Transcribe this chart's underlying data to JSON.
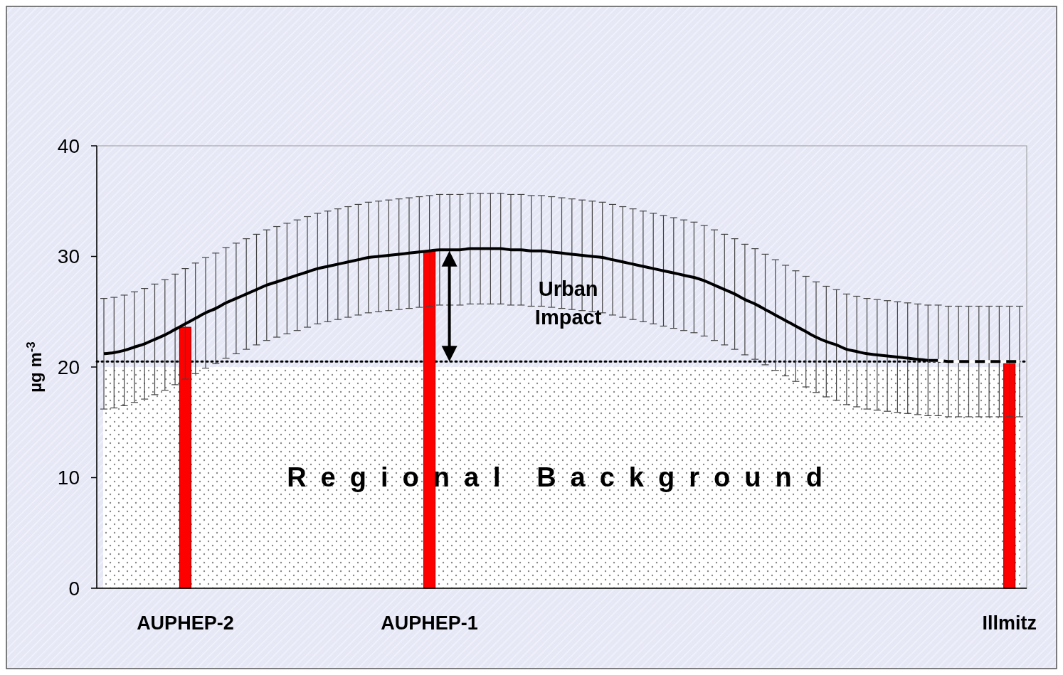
{
  "chart_data": {
    "type": "bar",
    "ylabel": "µg m$^{-3}$",
    "categories": [
      null,
      null,
      null,
      null,
      null,
      null,
      null,
      null,
      "AUPHEP-2",
      null,
      null,
      null,
      null,
      null,
      null,
      null,
      null,
      null,
      null,
      null,
      null,
      null,
      null,
      null,
      null,
      null,
      null,
      null,
      null,
      null,
      null,
      null,
      "AUPHEP-1",
      null,
      null,
      null,
      null,
      null,
      null,
      null,
      null,
      null,
      null,
      null,
      null,
      null,
      null,
      null,
      null,
      null,
      null,
      null,
      null,
      null,
      null,
      null,
      null,
      null,
      null,
      null,
      null,
      null,
      null,
      null,
      null,
      null,
      null,
      null,
      null,
      null,
      null,
      null,
      null,
      null,
      null,
      null,
      null,
      null,
      null,
      null,
      null,
      null,
      null,
      null,
      null,
      null,
      null,
      null,
      null,
      "Illmitz",
      null
    ],
    "series": [
      {
        "color": "#ff0000",
        "values": [
          null,
          null,
          null,
          null,
          null,
          null,
          null,
          null,
          23.6,
          null,
          null,
          null,
          null,
          null,
          null,
          null,
          null,
          null,
          null,
          null,
          null,
          null,
          null,
          null,
          null,
          null,
          null,
          null,
          null,
          null,
          null,
          null,
          30.5,
          null,
          null,
          null,
          null,
          null,
          null,
          null,
          null,
          null,
          null,
          null,
          null,
          null,
          null,
          null,
          null,
          null,
          null,
          null,
          null,
          null,
          null,
          null,
          null,
          null,
          null,
          null,
          null,
          null,
          null,
          null,
          null,
          null,
          null,
          null,
          null,
          null,
          null,
          null,
          null,
          null,
          null,
          null,
          null,
          null,
          null,
          null,
          null,
          null,
          null,
          null,
          null,
          null,
          null,
          null,
          null,
          20.3,
          null
        ]
      },
      {
        "type": "line",
        "color": "#000000",
        "line_style": "solid",
        "values": [
          21.2,
          21.3,
          21.5,
          21.8,
          22.1,
          22.5,
          22.9,
          23.4,
          23.9,
          24.4,
          24.9,
          25.3,
          25.8,
          26.2,
          26.6,
          27.0,
          27.4,
          27.7,
          28.0,
          28.3,
          28.6,
          28.9,
          29.1,
          29.3,
          29.5,
          29.7,
          29.9,
          30.0,
          30.1,
          30.2,
          30.3,
          30.4,
          30.5,
          30.6,
          30.6,
          30.6,
          30.7,
          30.7,
          30.7,
          30.7,
          30.6,
          30.6,
          30.5,
          30.5,
          30.4,
          30.3,
          30.2,
          30.1,
          30.0,
          29.9,
          29.7,
          29.5,
          29.3,
          29.1,
          28.9,
          28.7,
          28.5,
          28.3,
          28.1,
          27.8,
          27.4,
          27.0,
          26.6,
          26.1,
          25.7,
          25.2,
          24.7,
          24.2,
          23.7,
          23.2,
          22.7,
          22.3,
          22.0,
          21.6,
          21.4,
          21.2,
          21.1,
          21.0,
          20.9,
          20.8,
          20.7,
          20.6,
          null,
          null,
          null,
          null,
          null,
          null,
          null,
          null,
          null
        ],
        "errors": [
          5,
          5,
          5,
          5,
          5,
          5,
          5,
          5,
          5,
          5,
          5,
          5,
          5,
          5,
          5,
          5,
          5,
          5,
          5,
          5,
          5,
          5,
          5,
          5,
          5,
          5,
          5,
          5,
          5,
          5,
          5,
          5,
          5,
          5,
          5,
          5,
          5,
          5,
          5,
          5,
          5,
          5,
          5,
          5,
          5,
          5,
          5,
          5,
          5,
          5,
          5,
          5,
          5,
          5,
          5,
          5,
          5,
          5,
          5,
          5,
          5,
          5,
          5,
          5,
          5,
          5,
          5,
          5,
          5,
          5,
          5,
          5,
          5,
          5,
          5,
          5,
          5,
          5,
          5,
          5,
          5,
          5,
          null,
          null,
          null,
          null,
          null,
          null,
          null,
          null,
          null
        ]
      },
      {
        "type": "line",
        "color": "#000000",
        "line_style": "dashed",
        "values": [
          null,
          null,
          null,
          null,
          null,
          null,
          null,
          null,
          null,
          null,
          null,
          null,
          null,
          null,
          null,
          null,
          null,
          null,
          null,
          null,
          null,
          null,
          null,
          null,
          null,
          null,
          null,
          null,
          null,
          null,
          null,
          null,
          null,
          null,
          null,
          null,
          null,
          null,
          null,
          null,
          null,
          null,
          null,
          null,
          null,
          null,
          null,
          null,
          null,
          null,
          null,
          null,
          null,
          null,
          null,
          null,
          null,
          null,
          null,
          null,
          null,
          null,
          null,
          null,
          null,
          null,
          null,
          null,
          null,
          null,
          null,
          null,
          null,
          null,
          null,
          null,
          null,
          null,
          null,
          null,
          null,
          20.6,
          20.6,
          20.5,
          20.5,
          20.5,
          20.5,
          20.5,
          20.5,
          20.5,
          20.5
        ],
        "errors": [
          null,
          null,
          null,
          null,
          null,
          null,
          null,
          null,
          null,
          null,
          null,
          null,
          null,
          null,
          null,
          null,
          null,
          null,
          null,
          null,
          null,
          null,
          null,
          null,
          null,
          null,
          null,
          null,
          null,
          null,
          null,
          null,
          null,
          null,
          null,
          null,
          null,
          null,
          null,
          null,
          null,
          null,
          null,
          null,
          null,
          null,
          null,
          null,
          null,
          null,
          null,
          null,
          null,
          null,
          null,
          null,
          null,
          null,
          null,
          null,
          null,
          null,
          null,
          null,
          null,
          null,
          null,
          null,
          null,
          null,
          null,
          null,
          null,
          null,
          null,
          null,
          null,
          null,
          null,
          null,
          null,
          null,
          5,
          5,
          5,
          5,
          5,
          5,
          5,
          5,
          5
        ]
      }
    ],
    "ylim": [
      0,
      40
    ],
    "yticks": [
      0,
      10,
      20,
      30,
      40
    ],
    "ref_lines": [
      {
        "axis": "y",
        "value": 20.5,
        "color": "#000000",
        "line_style": "dotted"
      }
    ],
    "bands": [
      {
        "axis": "y",
        "from": 0,
        "to": 20,
        "label": "Regional Background",
        "color": "#ffffff"
      }
    ],
    "annotations": [
      "Urban Impact"
    ]
  }
}
